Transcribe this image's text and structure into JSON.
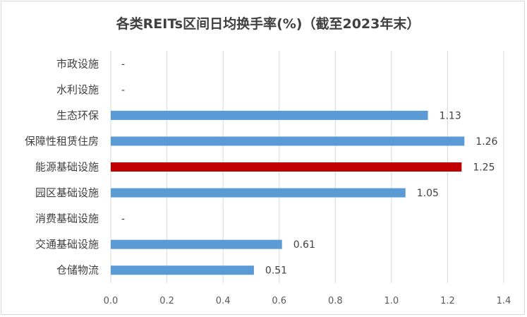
{
  "chart_data": {
    "type": "bar",
    "orientation": "horizontal",
    "title": "各类REITs区间日均换手率(%)（截至2023年末）",
    "categories": [
      "市政设施",
      "水利设施",
      "生态环保",
      "保障性租赁住房",
      "能源基础设施",
      "园区基础设施",
      "消费基础设施",
      "交通基础设施",
      "仓储物流"
    ],
    "values": [
      null,
      null,
      1.13,
      1.26,
      1.25,
      1.05,
      null,
      0.61,
      0.51
    ],
    "data_labels": [
      "-",
      "-",
      "1.13",
      "1.26",
      "1.25",
      "1.05",
      "-",
      "0.61",
      "0.51"
    ],
    "xlim": [
      0,
      1.4
    ],
    "xticks": [
      "0.0",
      "0.2",
      "0.4",
      "0.6",
      "0.8",
      "1.0",
      "1.2",
      "1.4"
    ],
    "grid": "vertical",
    "legend": "none",
    "colors": {
      "default": "#5b9bd5",
      "highlight": "#c00000",
      "highlight_category": "能源基础设施"
    }
  }
}
